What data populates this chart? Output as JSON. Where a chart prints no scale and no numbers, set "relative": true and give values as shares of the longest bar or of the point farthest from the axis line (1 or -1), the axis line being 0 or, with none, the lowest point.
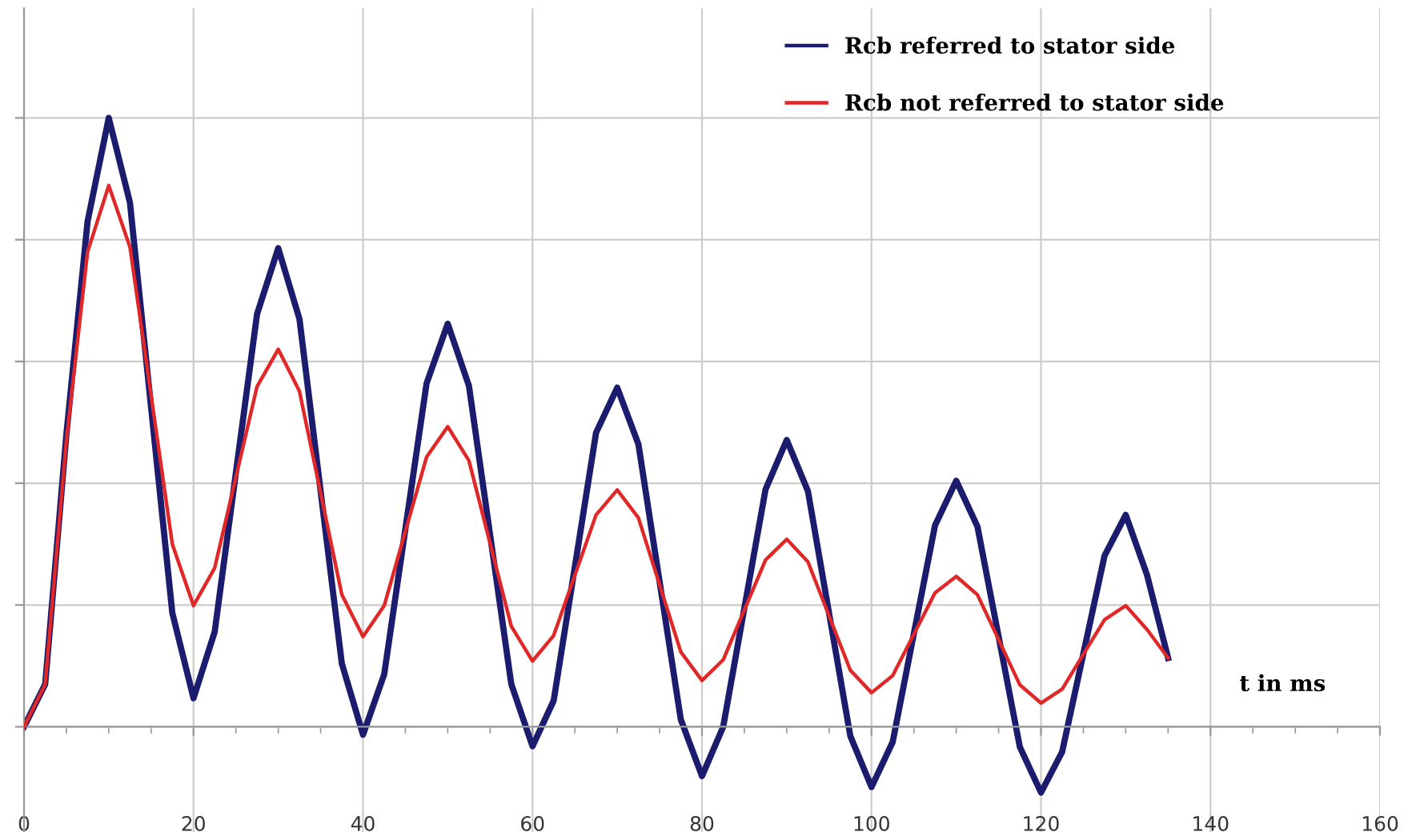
{
  "chart_data": {
    "type": "line",
    "relative": true,
    "xlabel": "t in ms",
    "xlim": [
      0,
      160
    ],
    "xticks": [
      0,
      20,
      40,
      60,
      80,
      100,
      120,
      140,
      160
    ],
    "grid": true,
    "legend": "top right",
    "marker": "none",
    "line_style": "solid",
    "x": [
      0,
      2.5,
      5,
      7.5,
      10,
      12.5,
      15,
      17.5,
      20,
      22.5,
      25,
      27.5,
      30,
      32.5,
      35,
      37.5,
      40,
      42.5,
      45,
      47.5,
      50,
      52.5,
      55,
      57.5,
      60,
      62.5,
      65,
      67.5,
      70,
      72.5,
      75,
      77.5,
      80,
      82.5,
      85,
      87.5,
      90,
      92.5,
      95,
      97.5,
      100,
      102.5,
      105,
      107.5,
      110,
      112.5,
      115,
      117.5,
      120,
      122.5,
      125,
      127.5,
      130,
      132.5,
      135
    ],
    "series": [
      {
        "name": "Rcb referred to stator side",
        "color": "#1c1c6e",
        "values": [
          0,
          0.07,
          0.48,
          0.83,
          1,
          0.861,
          0.524,
          0.187,
          0.047,
          0.156,
          0.417,
          0.678,
          0.786,
          0.67,
          0.387,
          0.104,
          -0.013,
          0.086,
          0.325,
          0.564,
          0.662,
          0.56,
          0.315,
          0.07,
          -0.032,
          0.043,
          0.263,
          0.483,
          0.557,
          0.464,
          0.238,
          0.012,
          -0.081,
          0.0,
          0.195,
          0.39,
          0.471,
          0.387,
          0.186,
          -0.015,
          -0.099,
          -0.025,
          0.153,
          0.331,
          0.404,
          0.329,
          0.148,
          -0.033,
          -0.108,
          -0.041,
          0.12,
          0.281,
          0.348,
          0.25,
          0.113
        ]
      },
      {
        "name": "Rcb not referred to stator side",
        "color": "#e02828",
        "values": [
          0,
          0.07,
          0.47,
          0.78,
          0.889,
          0.788,
          0.544,
          0.3,
          0.199,
          0.261,
          0.41,
          0.559,
          0.62,
          0.551,
          0.384,
          0.217,
          0.148,
          0.199,
          0.321,
          0.443,
          0.493,
          0.437,
          0.301,
          0.165,
          0.108,
          0.15,
          0.249,
          0.348,
          0.389,
          0.343,
          0.233,
          0.123,
          0.076,
          0.11,
          0.192,
          0.274,
          0.308,
          0.271,
          0.182,
          0.093,
          0.056,
          0.084,
          0.152,
          0.22,
          0.247,
          0.217,
          0.143,
          0.069,
          0.039,
          0.062,
          0.119,
          0.176,
          0.199,
          0.16,
          0.113
        ]
      }
    ]
  }
}
